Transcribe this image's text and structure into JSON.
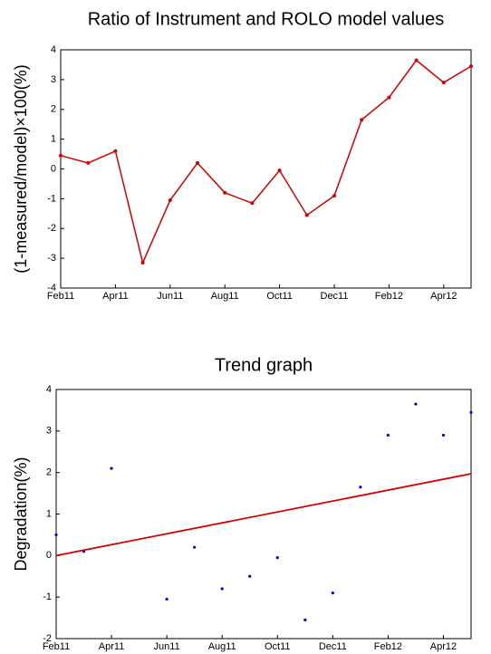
{
  "chart_data": [
    {
      "type": "line",
      "title": "Ratio of Instrument and ROLO model values",
      "y_label": "(1-measured/model)×100(%)",
      "categories": [
        "Feb11",
        null,
        "Apr11",
        null,
        "Jun11",
        null,
        "Aug11",
        null,
        "Oct11",
        null,
        "Dec11",
        null,
        "Feb12",
        null,
        "Apr12",
        null
      ],
      "series": [
        {
          "color": "#d40000",
          "values": [
            0.45,
            0.2,
            0.6,
            -3.15,
            -1.05,
            0.2,
            -0.8,
            -1.15,
            -0.05,
            -1.55,
            -0.9,
            1.65,
            2.4,
            3.65,
            2.9,
            3.45
          ]
        }
      ],
      "ylim": [
        -4,
        4
      ],
      "yticks": [
        -4,
        -3,
        -2,
        -1,
        0,
        1,
        2,
        3,
        4
      ]
    },
    {
      "type": "scatter",
      "title": "Trend graph",
      "y_label": "Degradation(%)",
      "categories": [
        "Feb11",
        null,
        "Apr11",
        null,
        "Jun11",
        null,
        "Aug11",
        null,
        "Oct11",
        null,
        "Dec11",
        null,
        "Feb12",
        null,
        "Apr12",
        null
      ],
      "series": [
        {
          "color": "#0000c8",
          "values": [
            0.5,
            0.1,
            2.1,
            null,
            -1.05,
            0.2,
            -0.8,
            -0.5,
            -0.05,
            -1.55,
            -0.9,
            1.65,
            2.9,
            3.65,
            2.9,
            3.45
          ]
        }
      ],
      "trend_line": {
        "color": "#d40000",
        "values": [
          0,
          1.97
        ]
      },
      "ylim": [
        -2,
        4
      ],
      "yticks": [
        -2,
        -1,
        0,
        1,
        2,
        3,
        4
      ]
    }
  ]
}
